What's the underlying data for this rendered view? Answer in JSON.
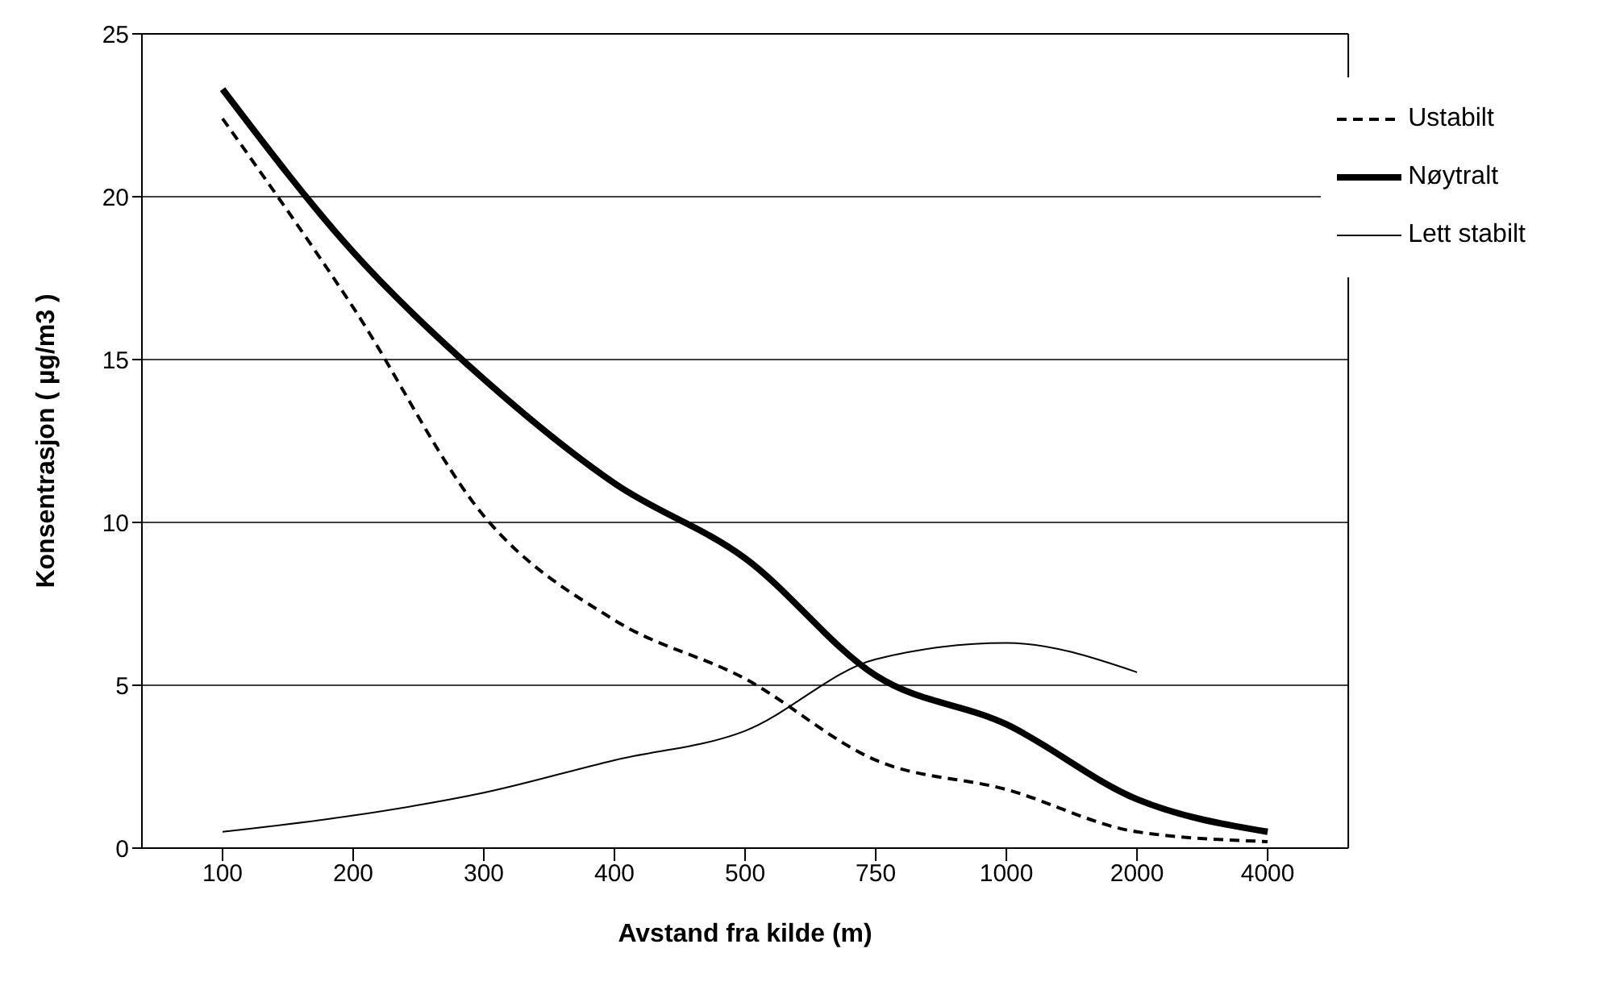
{
  "chart_data": {
    "type": "line",
    "xlabel": "Avstand fra kilde (m)",
    "ylabel": "Konsentrasjon ( µg/m3 )",
    "categories": [
      "100",
      "200",
      "300",
      "400",
      "500",
      "750",
      "1000",
      "2000",
      "4000"
    ],
    "series": [
      {
        "name": "Ustabilt",
        "color": "#000000",
        "line_style": "dashed",
        "values": [
          22.4,
          16.6,
          10.2,
          7.0,
          5.2,
          2.7,
          1.8,
          0.5,
          0.2
        ]
      },
      {
        "name": "Nøytralt",
        "color": "#000000",
        "line_style": "solid",
        "values": [
          23.3,
          18.3,
          14.4,
          11.2,
          8.9,
          5.3,
          3.8,
          1.5,
          0.5
        ]
      },
      {
        "name": "Lett stabilt",
        "color": "#000000",
        "line_style": "solid",
        "values": [
          0.5,
          1.0,
          1.7,
          2.7,
          3.6,
          5.8,
          6.3,
          5.4,
          null
        ]
      }
    ],
    "ylim": [
      0,
      25
    ],
    "yticks": [
      0,
      5,
      10,
      15,
      20,
      25
    ],
    "grid": "y",
    "legend": "top right",
    "marker": "none"
  }
}
